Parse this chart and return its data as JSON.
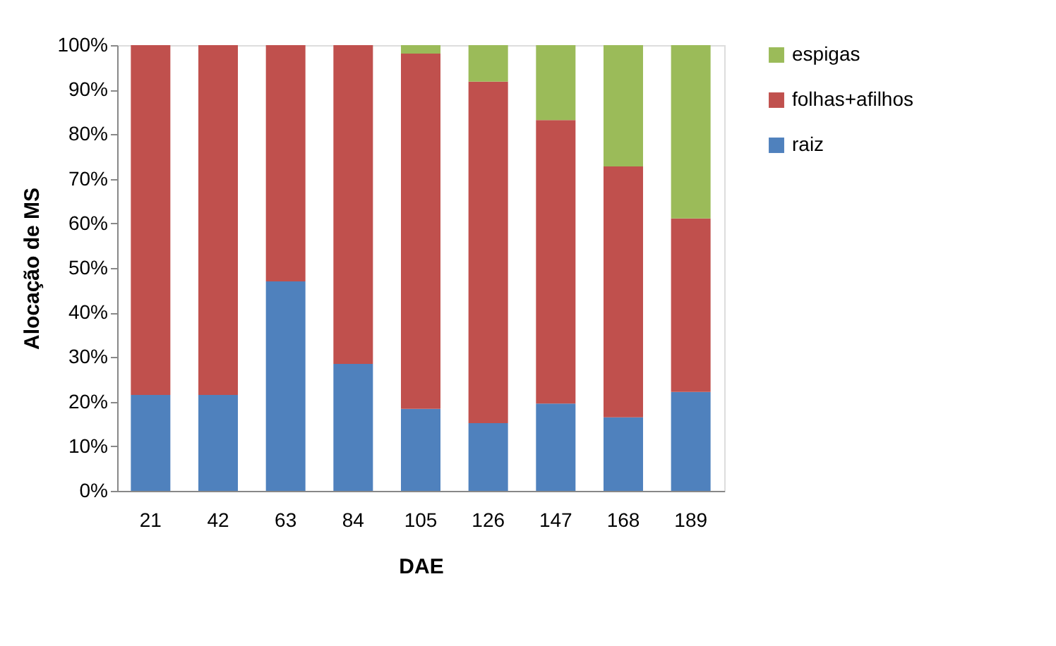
{
  "chart_data": {
    "type": "bar",
    "stacked": true,
    "xlabel": "DAE",
    "ylabel": "Alocação de MS",
    "categories": [
      "21",
      "42",
      "63",
      "84",
      "105",
      "126",
      "147",
      "168",
      "189"
    ],
    "series": [
      {
        "name": "raiz",
        "color": "#4f81bd",
        "values": [
          21.5,
          21.5,
          47,
          28.5,
          18.4,
          15.2,
          19.6,
          16.5,
          22.2
        ]
      },
      {
        "name": "folhas+afilhos",
        "color": "#c0504d",
        "values": [
          78.5,
          78.5,
          53,
          71.5,
          79.7,
          76.6,
          63.6,
          56.3,
          38.9
        ]
      },
      {
        "name": "espigas",
        "color": "#9bbb59",
        "values": [
          0,
          0,
          0,
          0,
          1.9,
          8.2,
          16.8,
          27.2,
          38.9
        ]
      }
    ],
    "ylim": [
      0,
      100
    ],
    "yticks": [
      {
        "value": 0,
        "label": "0%"
      },
      {
        "value": 10,
        "label": "10%"
      },
      {
        "value": 20,
        "label": "20%"
      },
      {
        "value": 30,
        "label": "30%"
      },
      {
        "value": 40,
        "label": "40%"
      },
      {
        "value": 50,
        "label": "50%"
      },
      {
        "value": 60,
        "label": "60%"
      },
      {
        "value": 70,
        "label": "70%"
      },
      {
        "value": 80,
        "label": "80%"
      },
      {
        "value": 90,
        "label": "90%"
      },
      {
        "value": 100,
        "label": "100%"
      }
    ],
    "grid": false,
    "legend": "right"
  }
}
